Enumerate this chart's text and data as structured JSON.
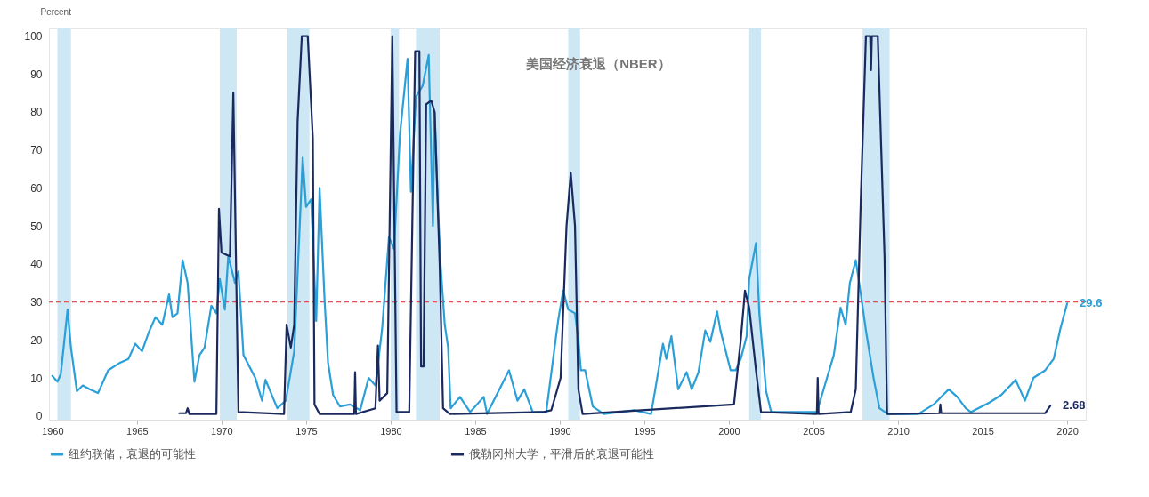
{
  "chart_data": {
    "type": "line",
    "ylabel": "Percent",
    "xlim": [
      1959.8,
      2021.1
    ],
    "ylim": [
      -1,
      102
    ],
    "xticks": [
      1960,
      1965,
      1970,
      1975,
      1980,
      1985,
      1990,
      1995,
      2000,
      2005,
      2010,
      2015,
      2020
    ],
    "yticks": [
      0,
      10,
      20,
      30,
      40,
      50,
      60,
      70,
      80,
      90,
      100
    ],
    "grid": false,
    "legend": "bottom",
    "annotations": [
      "美国经济衰退（NBER）"
    ],
    "bands": [
      {
        "axis": "x",
        "from": 1960.3,
        "to": 1961.1,
        "color": "#cde7f5"
      },
      {
        "axis": "x",
        "from": 1969.9,
        "to": 1970.9,
        "color": "#cde7f5"
      },
      {
        "axis": "x",
        "from": 1973.9,
        "to": 1975.2,
        "color": "#cde7f5"
      },
      {
        "axis": "x",
        "from": 1980.0,
        "to": 1980.5,
        "color": "#cde7f5"
      },
      {
        "axis": "x",
        "from": 1981.5,
        "to": 1982.9,
        "color": "#cde7f5"
      },
      {
        "axis": "x",
        "from": 1990.5,
        "to": 1991.2,
        "color": "#cde7f5"
      },
      {
        "axis": "x",
        "from": 2001.2,
        "to": 2001.9,
        "color": "#cde7f5"
      },
      {
        "axis": "x",
        "from": 2007.9,
        "to": 2009.5,
        "color": "#cde7f5"
      }
    ],
    "ref_lines": [
      {
        "axis": "y",
        "value": 30,
        "color": "#e8504f",
        "line_style": "dashed"
      }
    ],
    "series": [
      {
        "name": "纽约联储，衰退的可能性",
        "color": "#2a9fd8",
        "x": [
          1960.0,
          1960.3,
          1960.5,
          1960.9,
          1961.1,
          1961.45,
          1961.8,
          1962.2,
          1962.7,
          1963.3,
          1964.0,
          1964.5,
          1964.9,
          1965.3,
          1965.7,
          1966.1,
          1966.5,
          1966.9,
          1967.1,
          1967.4,
          1967.7,
          1968.0,
          1968.4,
          1968.7,
          1969.0,
          1969.4,
          1969.7,
          1969.9,
          1970.2,
          1970.4,
          1970.8,
          1971.0,
          1971.3,
          1972.0,
          1972.4,
          1972.6,
          1973.3,
          1973.8,
          1974.3,
          1974.8,
          1975.0,
          1975.3,
          1975.6,
          1975.8,
          1976.1,
          1976.3,
          1976.6,
          1977.0,
          1977.6,
          1978.2,
          1978.7,
          1979.1,
          1979.5,
          1979.9,
          1980.2,
          1980.55,
          1981.0,
          1981.2,
          1981.5,
          1981.9,
          1982.25,
          1982.5,
          1982.6,
          1982.8,
          1982.95,
          1983.2,
          1983.4,
          1983.55,
          1984.1,
          1984.7,
          1985.5,
          1985.7,
          1987.0,
          1987.5,
          1987.9,
          1988.4,
          1989.2,
          1989.9,
          1990.2,
          1990.5,
          1990.9,
          1991.1,
          1991.25,
          1991.5,
          1991.95,
          1992.6,
          1994.4,
          1995.4,
          1996.1,
          1996.3,
          1996.6,
          1997.0,
          1997.5,
          1997.8,
          1998.2,
          1998.6,
          1998.9,
          1999.3,
          1999.5,
          2000.1,
          2000.4,
          2000.7,
          2001.05,
          2001.2,
          2001.6,
          2001.8,
          2002.2,
          2002.5,
          2003.8,
          2005.2,
          2005.8,
          2006.2,
          2006.6,
          2006.9,
          2007.15,
          2007.5,
          2007.8,
          2008.1,
          2008.55,
          2008.9,
          2009.4,
          2011.2,
          2012.1,
          2013.0,
          2013.5,
          2014.0,
          2014.3,
          2015.4,
          2016.1,
          2016.95,
          2017.5,
          2018.0,
          2018.7,
          2019.2,
          2019.6,
          2020.0
        ],
        "values": [
          10.5,
          9,
          11,
          28,
          18,
          6.5,
          8,
          7,
          6,
          12,
          14,
          15,
          19,
          17,
          22,
          26,
          24,
          32,
          26,
          27,
          41,
          35,
          9,
          16,
          18,
          29,
          27,
          36,
          28,
          42,
          35,
          38,
          16,
          10,
          4,
          9.5,
          2,
          4,
          17,
          68,
          55,
          57,
          25,
          60,
          30,
          14,
          5.5,
          2.5,
          3,
          1.5,
          10,
          8,
          23,
          47,
          44,
          74,
          94,
          59,
          84,
          87,
          95,
          50,
          80,
          55,
          40,
          24,
          18,
          2,
          5,
          1,
          5,
          0.5,
          12,
          4,
          7,
          1,
          1,
          25,
          33,
          28,
          27,
          20,
          12,
          12,
          2.5,
          0.5,
          1.5,
          0.5,
          19,
          15,
          21,
          7,
          11.5,
          7,
          11.5,
          22.5,
          19.5,
          27.5,
          22.5,
          12,
          12,
          15,
          21,
          36,
          45.5,
          27,
          6.5,
          1,
          1,
          1,
          10,
          16,
          28.5,
          24,
          35,
          41,
          32,
          22.5,
          10,
          2,
          0.5,
          0.5,
          3,
          7,
          5,
          2,
          1,
          3.5,
          5.5,
          9.5,
          4,
          10,
          12,
          15,
          23,
          29.6
        ],
        "value_labels": [
          null,
          null,
          null,
          null,
          null,
          null,
          null,
          null,
          null,
          null,
          null,
          null,
          null,
          null,
          null,
          null,
          null,
          null,
          null,
          null,
          null,
          null,
          null,
          null,
          null,
          null,
          null,
          null,
          null,
          null,
          null,
          null,
          null,
          null,
          null,
          null,
          null,
          null,
          null,
          null,
          null,
          null,
          null,
          null,
          null,
          null,
          null,
          null,
          null,
          null,
          null,
          null,
          null,
          null,
          null,
          null,
          null,
          null,
          null,
          null,
          null,
          null,
          null,
          null,
          null,
          null,
          null,
          null,
          null,
          null,
          null,
          null,
          null,
          null,
          null,
          null,
          null,
          null,
          null,
          null,
          null,
          null,
          null,
          null,
          null,
          null,
          null,
          null,
          null,
          null,
          null,
          null,
          null,
          null,
          null,
          null,
          null,
          null,
          null,
          null,
          null,
          null,
          null,
          null,
          null,
          null,
          null,
          null,
          null,
          null,
          null,
          null,
          null,
          null,
          null,
          null,
          null,
          null,
          null,
          null,
          null,
          null,
          null,
          null,
          null,
          null,
          null,
          null,
          null,
          null,
          null,
          null,
          null,
          null,
          null,
          "29.6"
        ]
      },
      {
        "name": "俄勒冈州大学，平滑后的衰退可能性",
        "color": "#1b2a5e",
        "x": [
          1967.5,
          1967.9,
          1968.0,
          1968.1,
          1969.7,
          1969.85,
          1970.0,
          1970.5,
          1970.7,
          1971.0,
          1973.7,
          1973.85,
          1974.1,
          1974.3,
          1974.5,
          1974.75,
          1975.1,
          1975.4,
          1975.5,
          1975.8,
          1977.85,
          1977.9,
          1977.95,
          1979.1,
          1979.25,
          1979.35,
          1979.8,
          1980.1,
          1980.35,
          1981.1,
          1981.45,
          1981.7,
          1981.8,
          1981.95,
          1982.1,
          1982.4,
          1982.6,
          1982.9,
          1983.1,
          1983.5,
          1989.0,
          1989.5,
          1990.05,
          1990.4,
          1990.65,
          1990.9,
          1991.1,
          1991.35,
          2000.3,
          2000.7,
          2000.95,
          2001.2,
          2001.6,
          2001.9,
          2005.2,
          2005.25,
          2005.3,
          2007.2,
          2007.5,
          2007.8,
          2008.1,
          2008.35,
          2008.4,
          2008.45,
          2008.8,
          2009.2,
          2009.35,
          2012.45,
          2012.5,
          2012.55,
          2018.7,
          2019.0
        ],
        "values": [
          0.7,
          0.7,
          2,
          0.5,
          0.5,
          54.5,
          43,
          42,
          85,
          1,
          0.5,
          24,
          18,
          24,
          77.5,
          100,
          100,
          73,
          3,
          0.5,
          0.5,
          11.5,
          0.5,
          2,
          18.5,
          4,
          6,
          100,
          1,
          1,
          96,
          96,
          13,
          13,
          82,
          83,
          80,
          40,
          2,
          0.5,
          1,
          1.5,
          10,
          50,
          64,
          50,
          7,
          0.5,
          3,
          20,
          33,
          28.5,
          12,
          1,
          0.5,
          10,
          0.5,
          1,
          7,
          57.5,
          100,
          100,
          91,
          100,
          100,
          42,
          0.5,
          0.7,
          3,
          0.7,
          0.7,
          2.68
        ],
        "value_labels": [
          null,
          null,
          null,
          null,
          null,
          null,
          null,
          null,
          null,
          null,
          null,
          null,
          null,
          null,
          null,
          null,
          null,
          null,
          null,
          null,
          null,
          null,
          null,
          null,
          null,
          null,
          null,
          null,
          null,
          null,
          null,
          null,
          null,
          null,
          null,
          null,
          null,
          null,
          null,
          null,
          null,
          null,
          null,
          null,
          null,
          null,
          null,
          null,
          null,
          null,
          null,
          null,
          null,
          null,
          null,
          null,
          null,
          null,
          null,
          null,
          null,
          null,
          null,
          null,
          null,
          null,
          null,
          null,
          null,
          null,
          null,
          "2.68"
        ]
      }
    ]
  }
}
